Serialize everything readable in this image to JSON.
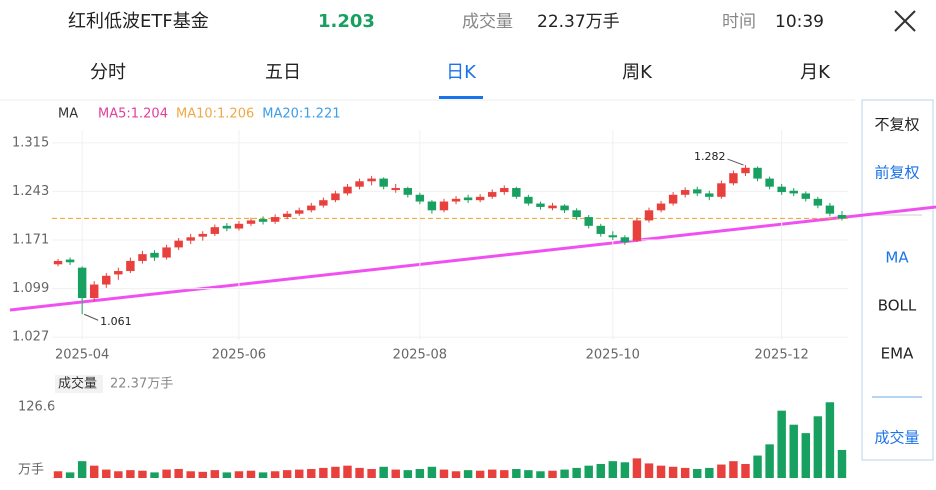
{
  "header": {
    "name": "红利低波ETF基金",
    "price": "1.203",
    "volume_label": "成交量",
    "volume": "22.37万手",
    "time_label": "时间",
    "time": "10:39"
  },
  "tabs": [
    "分时",
    "五日",
    "日K",
    "周K",
    "月K"
  ],
  "active_tab": 2,
  "side_menu": [
    "不复权",
    "前复权",
    "MA",
    "BOLL",
    "EMA",
    "成交量"
  ],
  "chart_data": [
    {
      "type": "candlestick",
      "legend_title": "MA",
      "ma_labels": [
        {
          "text": "MA5:1.204",
          "color": "#e0409a"
        },
        {
          "text": "MA10:1.206",
          "color": "#f0a848"
        },
        {
          "text": "MA20:1.221",
          "color": "#3a9ee8"
        }
      ],
      "up_color": "#e8413d",
      "down_color": "#18a060",
      "candles": [
        [
          1.135,
          1.143,
          1.132,
          1.14
        ],
        [
          1.142,
          1.145,
          1.134,
          1.138
        ],
        [
          1.13,
          1.132,
          1.061,
          1.085
        ],
        [
          1.085,
          1.11,
          1.08,
          1.105
        ],
        [
          1.105,
          1.122,
          1.1,
          1.118
        ],
        [
          1.12,
          1.13,
          1.112,
          1.125
        ],
        [
          1.125,
          1.145,
          1.122,
          1.14
        ],
        [
          1.14,
          1.155,
          1.136,
          1.15
        ],
        [
          1.152,
          1.156,
          1.14,
          1.145
        ],
        [
          1.145,
          1.164,
          1.142,
          1.16
        ],
        [
          1.16,
          1.174,
          1.156,
          1.17
        ],
        [
          1.17,
          1.18,
          1.165,
          1.175
        ],
        [
          1.176,
          1.184,
          1.17,
          1.18
        ],
        [
          1.18,
          1.194,
          1.177,
          1.19
        ],
        [
          1.192,
          1.196,
          1.184,
          1.188
        ],
        [
          1.188,
          1.199,
          1.185,
          1.195
        ],
        [
          1.195,
          1.204,
          1.192,
          1.2
        ],
        [
          1.202,
          1.206,
          1.194,
          1.198
        ],
        [
          1.198,
          1.209,
          1.195,
          1.205
        ],
        [
          1.205,
          1.214,
          1.202,
          1.21
        ],
        [
          1.21,
          1.219,
          1.207,
          1.215
        ],
        [
          1.215,
          1.226,
          1.212,
          1.222
        ],
        [
          1.222,
          1.234,
          1.219,
          1.23
        ],
        [
          1.23,
          1.244,
          1.227,
          1.24
        ],
        [
          1.24,
          1.254,
          1.237,
          1.25
        ],
        [
          1.25,
          1.262,
          1.246,
          1.258
        ],
        [
          1.258,
          1.266,
          1.252,
          1.262
        ],
        [
          1.262,
          1.264,
          1.246,
          1.25
        ],
        [
          1.245,
          1.254,
          1.241,
          1.248
        ],
        [
          1.248,
          1.25,
          1.234,
          1.238
        ],
        [
          1.238,
          1.241,
          1.224,
          1.228
        ],
        [
          1.228,
          1.23,
          1.21,
          1.215
        ],
        [
          1.215,
          1.232,
          1.212,
          1.228
        ],
        [
          1.228,
          1.236,
          1.224,
          1.232
        ],
        [
          1.234,
          1.238,
          1.226,
          1.23
        ],
        [
          1.23,
          1.239,
          1.227,
          1.235
        ],
        [
          1.235,
          1.246,
          1.232,
          1.242
        ],
        [
          1.242,
          1.252,
          1.238,
          1.248
        ],
        [
          1.248,
          1.25,
          1.232,
          1.235
        ],
        [
          1.235,
          1.238,
          1.222,
          1.225
        ],
        [
          1.225,
          1.228,
          1.216,
          1.22
        ],
        [
          1.218,
          1.226,
          1.215,
          1.222
        ],
        [
          1.222,
          1.224,
          1.211,
          1.215
        ],
        [
          1.215,
          1.218,
          1.201,
          1.205
        ],
        [
          1.205,
          1.208,
          1.188,
          1.192
        ],
        [
          1.192,
          1.195,
          1.176,
          1.18
        ],
        [
          1.178,
          1.184,
          1.171,
          1.175
        ],
        [
          1.175,
          1.178,
          1.164,
          1.168
        ],
        [
          1.17,
          1.204,
          1.168,
          1.2
        ],
        [
          1.2,
          1.219,
          1.197,
          1.215
        ],
        [
          1.215,
          1.229,
          1.212,
          1.225
        ],
        [
          1.225,
          1.242,
          1.222,
          1.238
        ],
        [
          1.238,
          1.249,
          1.234,
          1.245
        ],
        [
          1.246,
          1.25,
          1.236,
          1.24
        ],
        [
          1.24,
          1.244,
          1.23,
          1.235
        ],
        [
          1.235,
          1.259,
          1.232,
          1.255
        ],
        [
          1.255,
          1.274,
          1.252,
          1.27
        ],
        [
          1.27,
          1.282,
          1.266,
          1.278
        ],
        [
          1.278,
          1.28,
          1.258,
          1.262
        ],
        [
          1.262,
          1.265,
          1.246,
          1.25
        ],
        [
          1.25,
          1.254,
          1.238,
          1.242
        ],
        [
          1.244,
          1.248,
          1.236,
          1.24
        ],
        [
          1.24,
          1.243,
          1.228,
          1.232
        ],
        [
          1.232,
          1.235,
          1.218,
          1.222
        ],
        [
          1.222,
          1.226,
          1.206,
          1.21
        ],
        [
          1.208,
          1.214,
          1.2,
          1.203
        ]
      ],
      "ylim": [
        1.008,
        1.334
      ],
      "yticks": [
        1.315,
        1.243,
        1.171,
        1.099,
        1.027
      ],
      "xticks": [
        {
          "value": 2,
          "label": "2025-04"
        },
        {
          "value": 15,
          "label": "2025-06"
        },
        {
          "value": 30,
          "label": "2025-08"
        },
        {
          "value": 46,
          "label": "2025-10"
        },
        {
          "value": 60,
          "label": "2025-12"
        }
      ],
      "grid": true
    },
    {
      "type": "bar",
      "title": "成交量",
      "subtitle": "22.37万手",
      "values": [
        12,
        10,
        30,
        22,
        15,
        12,
        14,
        13,
        10,
        15,
        16,
        12,
        11,
        14,
        10,
        12,
        13,
        10,
        12,
        14,
        15,
        16,
        18,
        20,
        22,
        18,
        16,
        20,
        15,
        14,
        16,
        20,
        15,
        12,
        14,
        13,
        15,
        14,
        16,
        14,
        12,
        13,
        15,
        18,
        22,
        25,
        30,
        28,
        35,
        26,
        22,
        20,
        18,
        16,
        18,
        24,
        30,
        25,
        40,
        60,
        120,
        95,
        80,
        110,
        135,
        50
      ],
      "ylim": [
        0,
        142.6
      ],
      "yticks": [
        {
          "value": 126.6,
          "label": "126.6"
        },
        {
          "value": 0,
          "label": "万手"
        }
      ]
    }
  ]
}
